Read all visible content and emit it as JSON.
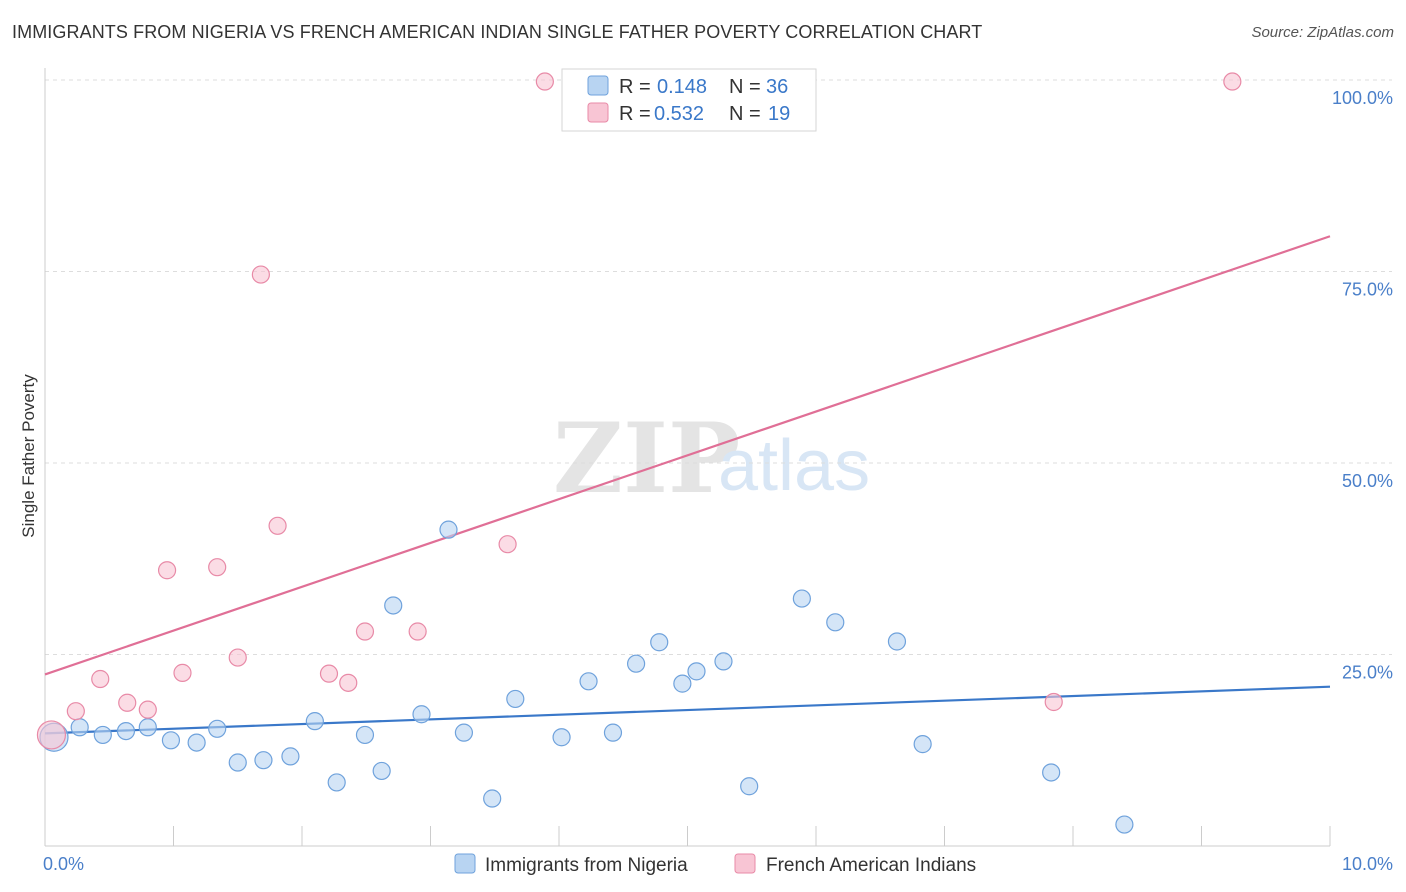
{
  "title": "IMMIGRANTS FROM NIGERIA VS FRENCH AMERICAN INDIAN SINGLE FATHER POVERTY CORRELATION CHART",
  "source": "Source: ZipAtlas.com",
  "watermark": {
    "zip": "ZIP",
    "atlas": "atlas"
  },
  "colors": {
    "blue_fill": "#b8d4f2",
    "blue_stroke": "#6fa2dc",
    "blue_line": "#3a78c9",
    "pink_fill": "#f8c5d4",
    "pink_stroke": "#e88aa7",
    "pink_line": "#e06f96",
    "axis_text": "#4a7fc9",
    "grid": "#dddddd"
  },
  "legend": {
    "rows": [
      {
        "series": "blue",
        "r_label": "R =",
        "r_value": "0.148",
        "n_label": "N =",
        "n_value": "36"
      },
      {
        "series": "pink",
        "r_label": "R =",
        "r_value": "0.532",
        "n_label": "N =",
        "n_value": "19"
      }
    ]
  },
  "chart_data": {
    "type": "scatter",
    "title": "IMMIGRANTS FROM NIGERIA VS FRENCH AMERICAN INDIAN SINGLE FATHER POVERTY CORRELATION CHART",
    "xlabel": "",
    "ylabel": "Single Father Poverty",
    "xlim": [
      0,
      10
    ],
    "ylim": [
      0,
      100
    ],
    "x_ticks": [
      0,
      1,
      2,
      3,
      4,
      5,
      6,
      7,
      8,
      9,
      10
    ],
    "x_tick_labels": {
      "0": "0.0%",
      "10": "10.0%"
    },
    "y_ticks": [
      25,
      50,
      75,
      100
    ],
    "y_tick_labels": [
      "25.0%",
      "50.0%",
      "75.0%",
      "100.0%"
    ],
    "grid": true,
    "legend_position": "top-center",
    "series": [
      {
        "name": "Immigrants from Nigeria",
        "color": "blue",
        "trend": {
          "x0": 0,
          "y0": 14.7,
          "x1": 10,
          "y1": 20.8
        },
        "points": [
          {
            "x": 0.07,
            "y": 14.2,
            "size": "large"
          },
          {
            "x": 0.27,
            "y": 15.5
          },
          {
            "x": 0.45,
            "y": 14.5
          },
          {
            "x": 0.63,
            "y": 15.0
          },
          {
            "x": 0.8,
            "y": 15.5
          },
          {
            "x": 0.98,
            "y": 13.8
          },
          {
            "x": 1.18,
            "y": 13.5
          },
          {
            "x": 1.34,
            "y": 15.3
          },
          {
            "x": 1.5,
            "y": 10.9
          },
          {
            "x": 1.7,
            "y": 11.2
          },
          {
            "x": 1.91,
            "y": 11.7
          },
          {
            "x": 2.1,
            "y": 16.3
          },
          {
            "x": 2.27,
            "y": 8.3
          },
          {
            "x": 2.49,
            "y": 14.5
          },
          {
            "x": 2.62,
            "y": 9.8
          },
          {
            "x": 2.71,
            "y": 31.4
          },
          {
            "x": 2.93,
            "y": 17.2
          },
          {
            "x": 3.14,
            "y": 41.3
          },
          {
            "x": 3.26,
            "y": 14.8
          },
          {
            "x": 3.48,
            "y": 6.2
          },
          {
            "x": 3.66,
            "y": 19.2
          },
          {
            "x": 4.02,
            "y": 14.2
          },
          {
            "x": 4.23,
            "y": 21.5
          },
          {
            "x": 4.42,
            "y": 14.8
          },
          {
            "x": 4.6,
            "y": 23.8
          },
          {
            "x": 4.78,
            "y": 26.6
          },
          {
            "x": 4.96,
            "y": 21.2
          },
          {
            "x": 5.07,
            "y": 22.8
          },
          {
            "x": 5.28,
            "y": 24.1
          },
          {
            "x": 5.48,
            "y": 7.8
          },
          {
            "x": 5.89,
            "y": 32.3
          },
          {
            "x": 6.15,
            "y": 29.2
          },
          {
            "x": 6.63,
            "y": 26.7
          },
          {
            "x": 6.83,
            "y": 13.3
          },
          {
            "x": 7.83,
            "y": 9.6
          },
          {
            "x": 8.4,
            "y": 2.8
          }
        ]
      },
      {
        "name": "French American Indians",
        "color": "pink",
        "trend": {
          "x0": 0,
          "y0": 22.4,
          "x1": 10,
          "y1": 79.6
        },
        "points": [
          {
            "x": 0.05,
            "y": 14.5,
            "size": "large"
          },
          {
            "x": 0.24,
            "y": 17.6
          },
          {
            "x": 0.43,
            "y": 21.8
          },
          {
            "x": 0.64,
            "y": 18.7
          },
          {
            "x": 0.8,
            "y": 17.8
          },
          {
            "x": 0.95,
            "y": 36.0
          },
          {
            "x": 1.07,
            "y": 22.6
          },
          {
            "x": 1.34,
            "y": 36.4
          },
          {
            "x": 1.5,
            "y": 24.6
          },
          {
            "x": 1.68,
            "y": 74.6
          },
          {
            "x": 1.81,
            "y": 41.8
          },
          {
            "x": 2.21,
            "y": 22.5
          },
          {
            "x": 2.36,
            "y": 21.3
          },
          {
            "x": 2.49,
            "y": 28.0
          },
          {
            "x": 2.9,
            "y": 28.0
          },
          {
            "x": 3.6,
            "y": 39.4
          },
          {
            "x": 3.89,
            "y": 99.8
          },
          {
            "x": 7.85,
            "y": 18.8
          },
          {
            "x": 9.24,
            "y": 99.8
          }
        ]
      }
    ]
  },
  "bottom_legend": {
    "items": [
      {
        "series": "blue",
        "label": "Immigrants from Nigeria"
      },
      {
        "series": "pink",
        "label": "French American Indians"
      }
    ]
  }
}
